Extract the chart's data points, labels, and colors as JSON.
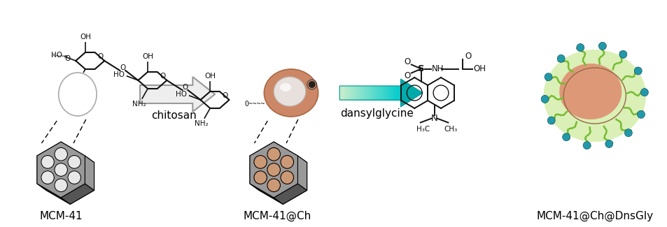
{
  "bg_color": "#ffffff",
  "label_mcm41": "MCM-41",
  "label_mcmch": "MCM-41@Ch",
  "label_mcmdns": "MCM-41@Ch@DnsGly",
  "label_chitosan": "chitosan",
  "label_dansylglycine": "dansylglycine",
  "sphere_gray_color": "#d4d4d4",
  "sphere_orange_color": "#cc8866",
  "sphere_orange_light": "#ddaa88",
  "mcm_gray_color": "#999999",
  "mcm_dark_color": "#555555",
  "mcm_darker": "#333333",
  "pore_gray_color": "#e8e8e8",
  "pore_orange_color": "#cc9977",
  "arrow1_face": "#eeeeee",
  "arrow1_edge": "#999999",
  "arrow2_start": "#cceecc",
  "arrow2_end": "#00bbbb",
  "arrow2_head": "#00aaaa",
  "dansyl_green": "#77bb33",
  "dansyl_teal": "#2299aa",
  "chitosan_color": "#111111",
  "mol_color": "#111111",
  "font_size_label": 11,
  "font_size_small": 7.5,
  "font_size_med": 8.5
}
